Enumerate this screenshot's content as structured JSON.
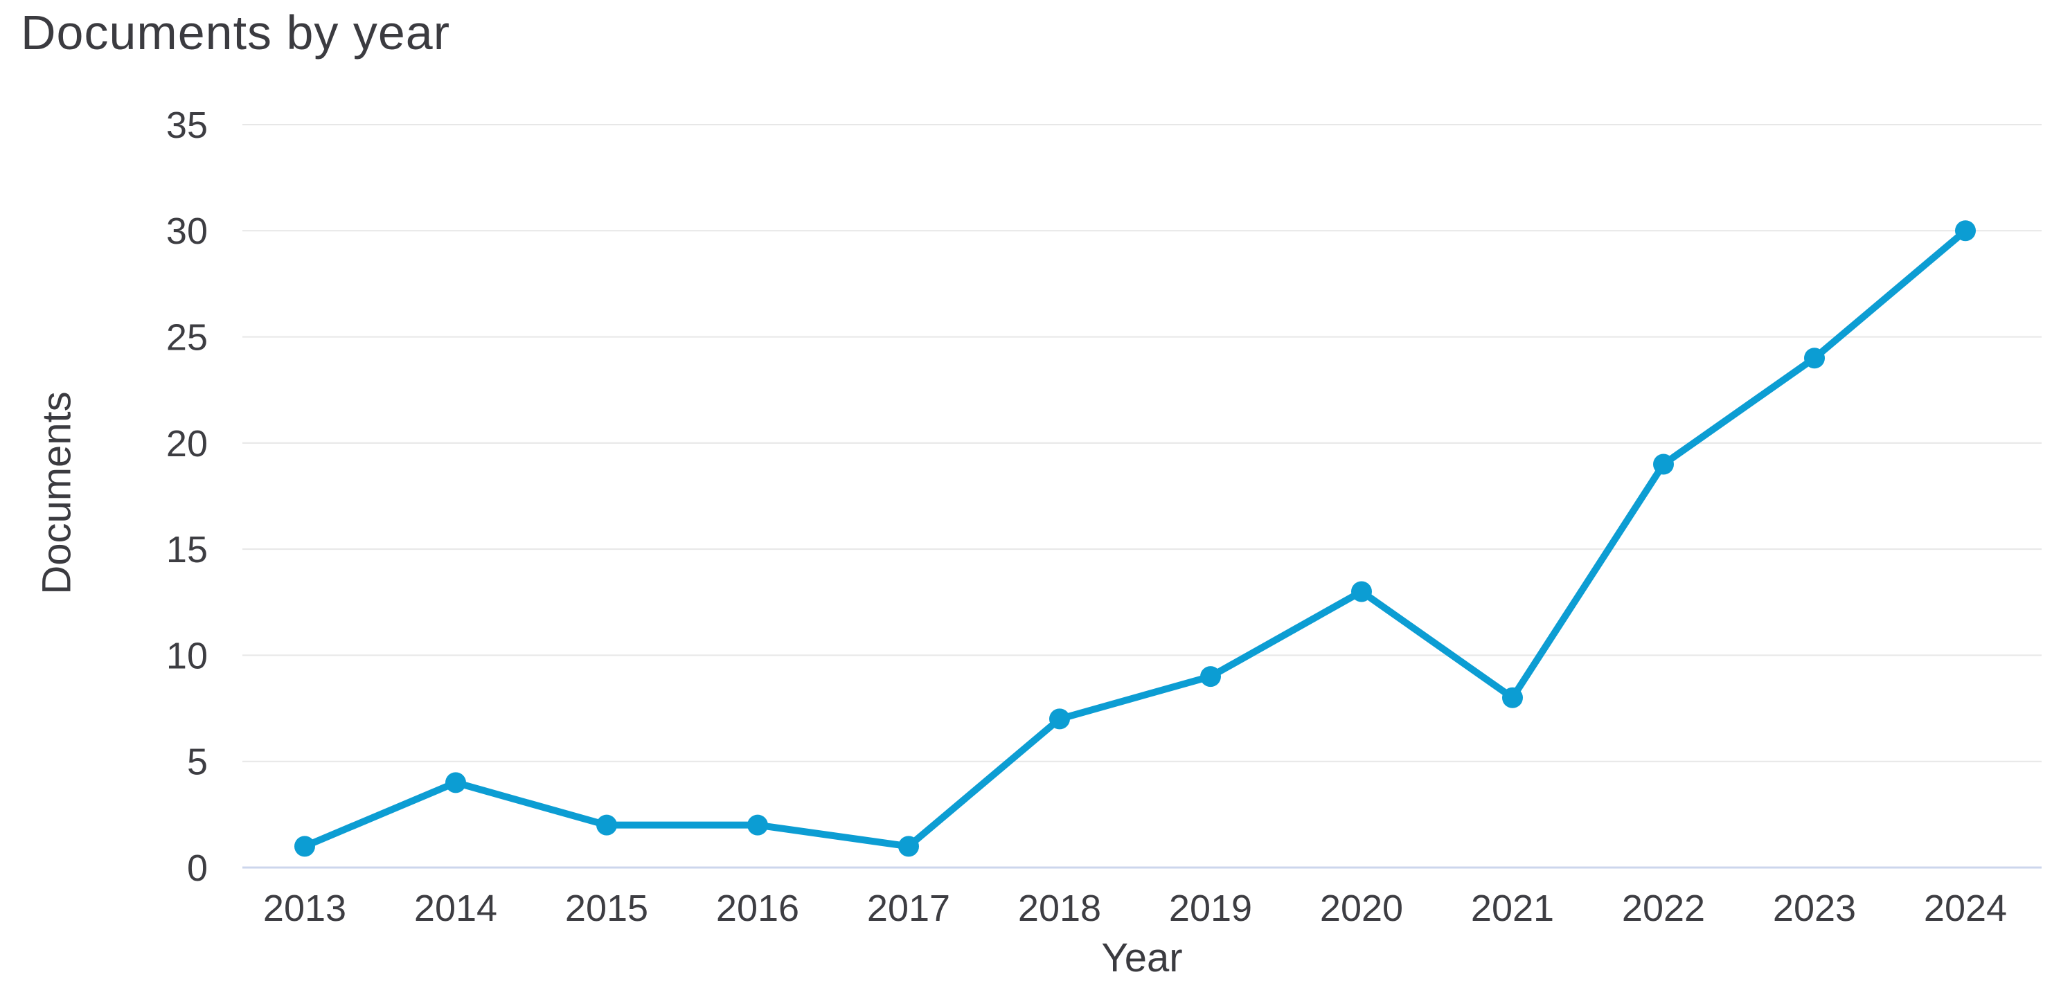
{
  "page": {
    "background": "#ffffff"
  },
  "chart_data": {
    "type": "line",
    "title": "Documents by year",
    "xlabel": "Year",
    "ylabel": "Documents",
    "categories": [
      "2013",
      "2014",
      "2015",
      "2016",
      "2017",
      "2018",
      "2019",
      "2020",
      "2021",
      "2022",
      "2023",
      "2024"
    ],
    "series": [
      {
        "name": "Documents",
        "values": [
          1,
          4,
          2,
          2,
          1,
          7,
          9,
          13,
          8,
          19,
          24,
          30
        ]
      }
    ],
    "yticks": [
      0,
      5,
      10,
      15,
      20,
      25,
      30,
      35
    ],
    "ylim": [
      0,
      35
    ],
    "grid": "horizontal-only",
    "legend": "none",
    "marker": "circle",
    "colors": {
      "line": "#0c9dd3",
      "marker": "#0c9dd3",
      "gridline": "#e7e7e7",
      "zero_axis": "#ccd6ec",
      "text": "#3d3d42"
    }
  }
}
